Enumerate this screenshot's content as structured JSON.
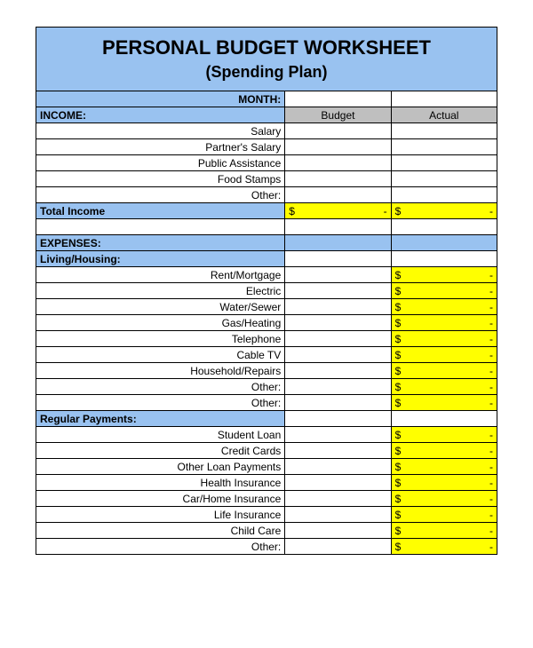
{
  "title": "PERSONAL BUDGET WORKSHEET",
  "subtitle": "(Spending Plan)",
  "monthLabel": "MONTH:",
  "columns": {
    "budget": "Budget",
    "actual": "Actual"
  },
  "dollarSign": "$",
  "dash": "-",
  "incomeHeader": "INCOME:",
  "incomeItems": [
    "Salary",
    "Partner's Salary",
    "Public Assistance",
    "Food Stamps",
    "Other:"
  ],
  "totalIncome": "Total Income",
  "expensesHeader": "EXPENSES:",
  "livingHeader": "Living/Housing:",
  "livingItems": [
    "Rent/Mortgage",
    "Electric",
    "Water/Sewer",
    "Gas/Heating",
    "Telephone",
    "Cable TV",
    "Household/Repairs",
    "Other:",
    "Other:"
  ],
  "regularHeader": "Regular Payments:",
  "regularItems": [
    "Student Loan",
    "Credit Cards",
    "Other Loan Payments",
    "Health Insurance",
    "Car/Home Insurance",
    "Life Insurance",
    "Child Care",
    "Other:"
  ],
  "colors": {
    "headerBlue": "#99c2f0",
    "gray": "#bfbfbf",
    "yellow": "#ffff00"
  }
}
